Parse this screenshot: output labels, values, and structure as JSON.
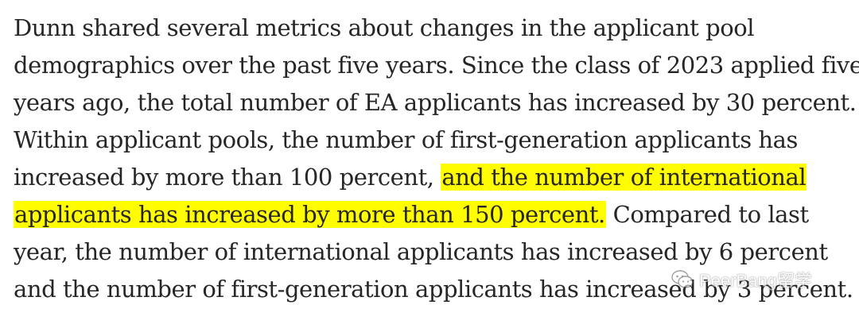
{
  "article": {
    "lines": [
      "Dunn shared several metrics about changes in the applicant pool",
      "demographics over the past five years. Since the class of 2023 applied five",
      "years ago, the total number of EA applicants has increased by 30 percent.",
      "Within applicant pools, the number of first-generation applicants has",
      {
        "before": "increased by more than 100 percent, ",
        "highlight": "and the number of international"
      },
      {
        "highlight": "applicants has increased by more than 150 percent.",
        "after": " Compared to last"
      },
      "year, the number of international applicants has increased by 6 percent",
      "and the number of first-generation applicants has increased by 3 percent."
    ]
  },
  "watermark": {
    "icon": "wechat-icon",
    "text": "PeerBang留学"
  },
  "colors": {
    "text": "#262626",
    "highlight": "#fffd00",
    "background": "#ffffff"
  }
}
